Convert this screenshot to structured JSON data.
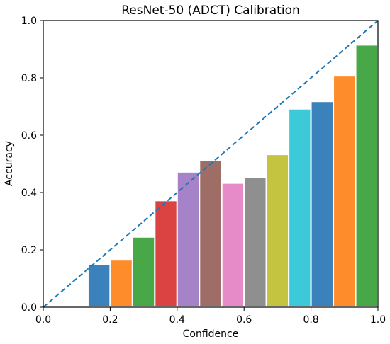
{
  "chart_data": {
    "type": "bar",
    "title": "ResNet-50 (ADCT) Calibration",
    "xlabel": "Confidence",
    "ylabel": "Accuracy",
    "xlim": [
      0.0,
      1.0
    ],
    "ylim": [
      0.0,
      1.0
    ],
    "x_ticks": [
      "0.0",
      "0.2",
      "0.4",
      "0.6",
      "0.8",
      "1.0"
    ],
    "y_ticks": [
      "0.0",
      "0.2",
      "0.4",
      "0.6",
      "0.8",
      "1.0"
    ],
    "grid": false,
    "legend": "none",
    "bin_width": 0.0667,
    "bins": [
      {
        "x": 0.1667,
        "y": 0.15,
        "color": "#3b82bd"
      },
      {
        "x": 0.2333,
        "y": 0.165,
        "color": "#ff8c2a"
      },
      {
        "x": 0.3,
        "y": 0.245,
        "color": "#48a848"
      },
      {
        "x": 0.3667,
        "y": 0.372,
        "color": "#db4242"
      },
      {
        "x": 0.4333,
        "y": 0.472,
        "color": "#a683c8"
      },
      {
        "x": 0.5,
        "y": 0.513,
        "color": "#9e6e66"
      },
      {
        "x": 0.5667,
        "y": 0.433,
        "color": "#e68bc8"
      },
      {
        "x": 0.6333,
        "y": 0.452,
        "color": "#8f8f8f"
      },
      {
        "x": 0.7,
        "y": 0.533,
        "color": "#c4c440"
      },
      {
        "x": 0.7667,
        "y": 0.692,
        "color": "#3ccad8"
      },
      {
        "x": 0.8333,
        "y": 0.718,
        "color": "#3b82bd"
      },
      {
        "x": 0.9,
        "y": 0.807,
        "color": "#ff8c2a"
      },
      {
        "x": 0.9667,
        "y": 0.915,
        "color": "#48a848"
      }
    ],
    "reference_line": {
      "from": [
        0.0,
        0.0
      ],
      "to": [
        1.0,
        1.0
      ],
      "style": "dashed",
      "color": "#1f77b4"
    }
  }
}
